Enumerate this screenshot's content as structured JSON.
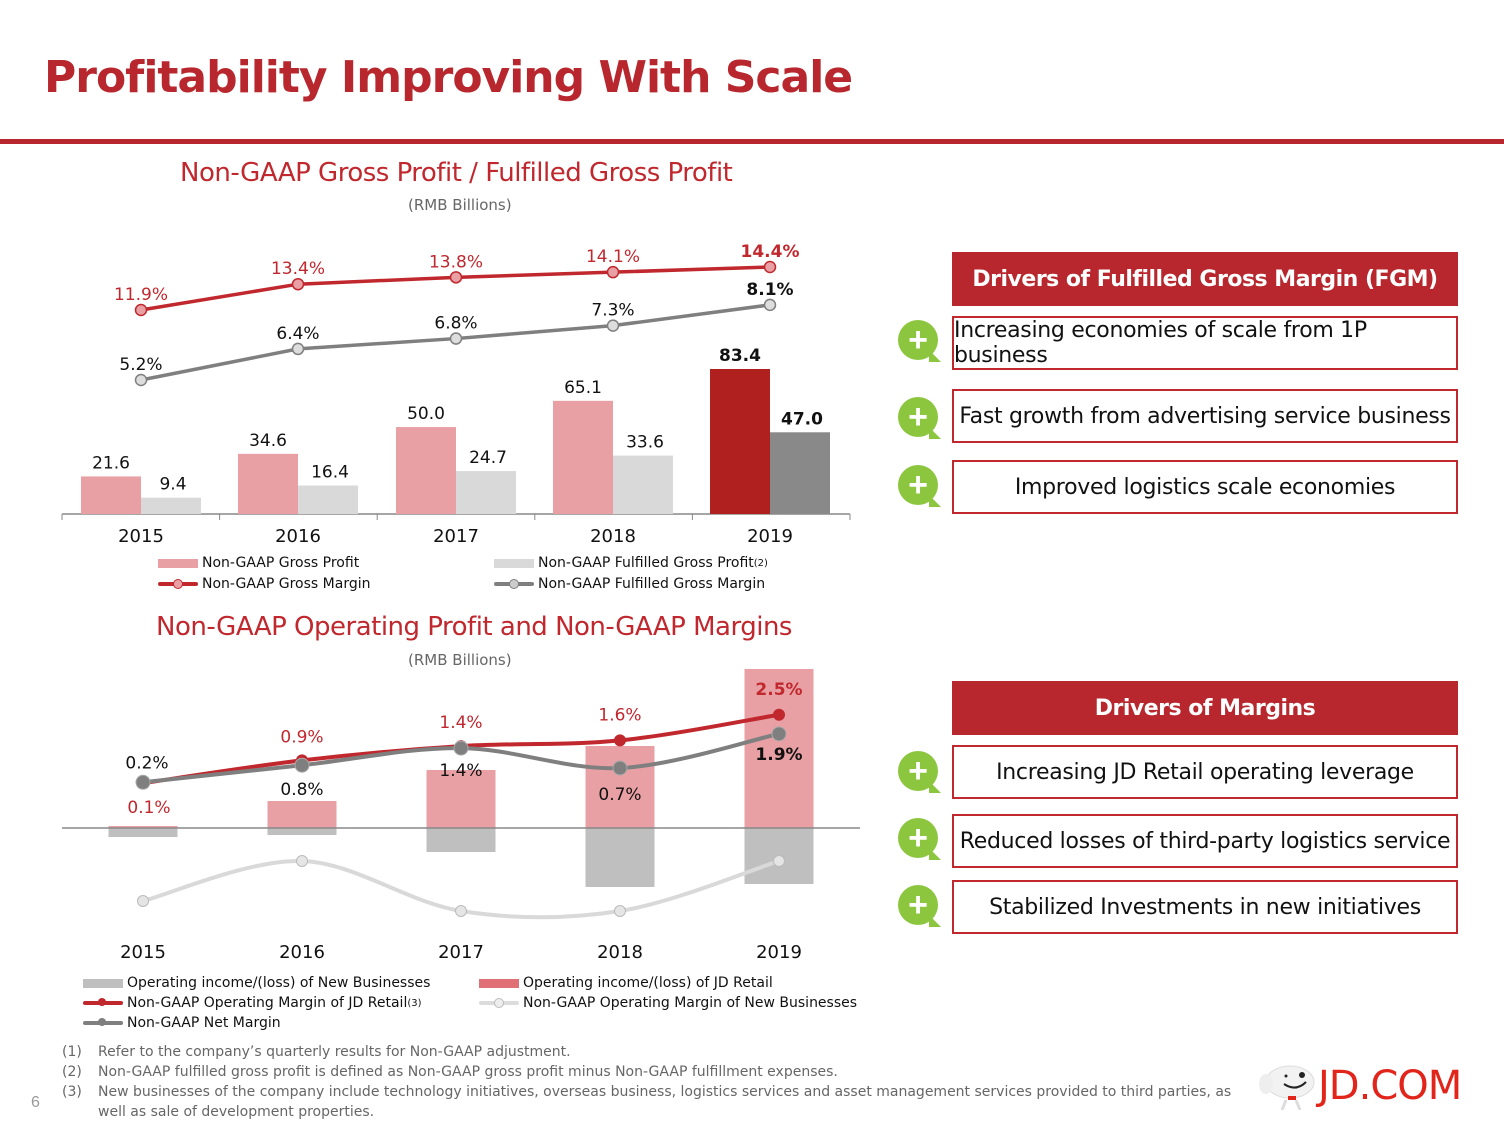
{
  "title": "Profitability Improving With Scale",
  "page_number": "6",
  "logo_text": "JD.COM",
  "colors": {
    "brand_red": "#b7272d",
    "pink": "#e8a0a4",
    "light_gray": "#d9d9d9",
    "dark_gray": "#898989",
    "dark_red": "#b0201e",
    "green": "#8cc63f"
  },
  "chart_data": [
    {
      "type": "bar",
      "title": "Non-GAAP Gross Profit / Fulfilled Gross Profit",
      "subtitle": "(RMB Billions)",
      "categories": [
        "2015",
        "2016",
        "2017",
        "2018",
        "2019"
      ],
      "series": [
        {
          "name": "Non-GAAP Gross Profit",
          "kind": "bar",
          "color": "#e8a0a4",
          "values": [
            21.6,
            34.6,
            50.0,
            65.1,
            83.4
          ],
          "labels": [
            "21.6",
            "34.6",
            "50.0",
            "65.1",
            "83.4"
          ]
        },
        {
          "name": "Non-GAAP Fulfilled Gross Profit",
          "footnote": "(2)",
          "kind": "bar",
          "color": "#d9d9d9",
          "values": [
            9.4,
            16.4,
            24.7,
            33.6,
            47.0
          ],
          "labels": [
            "9.4",
            "16.4",
            "24.7",
            "33.6",
            "47.0"
          ]
        },
        {
          "name": "Non-GAAP Gross Margin",
          "kind": "line",
          "color": "#c0282e",
          "values": [
            11.9,
            13.4,
            13.8,
            14.1,
            14.4
          ],
          "labels": [
            "11.9%",
            "13.4%",
            "13.8%",
            "14.1%",
            "14.4%"
          ]
        },
        {
          "name": "Non-GAAP Fulfilled Gross Margin",
          "kind": "line",
          "color": "#7f7f7f",
          "values": [
            5.2,
            6.4,
            6.8,
            7.3,
            8.1
          ],
          "labels": [
            "5.2%",
            "6.4%",
            "6.8%",
            "7.3%",
            "8.1%"
          ]
        }
      ],
      "highlight_last": {
        "bar_colors": [
          "#b0201e",
          "#898989"
        ]
      },
      "legend": "bottom",
      "grid": false
    },
    {
      "type": "bar",
      "title": "Non-GAAP Operating Profit and Non-GAAP Margins",
      "subtitle": "(RMB Billions)",
      "categories": [
        "2015",
        "2016",
        "2017",
        "2018",
        "2019"
      ],
      "series": [
        {
          "name": "Operating income/(loss) of New Businesses",
          "kind": "bar",
          "color": "#bfbfbf",
          "values": [
            -0.9,
            -0.7,
            -2.4,
            -5.9,
            -5.6
          ]
        },
        {
          "name": "Operating income/(loss) of JD Retail",
          "kind": "bar",
          "color": "#e8a0a4",
          "values": [
            0.2,
            2.7,
            5.8,
            8.2,
            15.9
          ]
        },
        {
          "name": "Non-GAAP Operating Margin of JD Retail",
          "footnote": "(3)",
          "kind": "line",
          "color": "#c0282e",
          "values": [
            0.1,
            0.9,
            1.4,
            1.6,
            2.5
          ],
          "labels": [
            "0.1%",
            "0.9%",
            "1.4%",
            "1.6%",
            "2.5%"
          ]
        },
        {
          "name": "Non-GAAP Operating Margin of New Businesses",
          "kind": "line",
          "color": "#d9d9d9",
          "values": [
            -15,
            -7,
            -17,
            -17,
            -7
          ]
        },
        {
          "name": "Non-GAAP Net Margin",
          "kind": "line",
          "color": "#7f7f7f",
          "values": [
            0.2,
            0.8,
            1.4,
            0.7,
            1.9
          ],
          "labels": [
            "0.2%",
            "0.8%",
            "1.4%",
            "0.7%",
            "1.9%"
          ]
        }
      ],
      "legend": "bottom",
      "grid": false
    }
  ],
  "drivers_fgm": {
    "header": "Drivers of Fulfilled Gross Margin (FGM)",
    "items": [
      "Increasing economies of scale from 1P business",
      "Fast growth from advertising service business",
      "Improved logistics scale economies"
    ]
  },
  "drivers_margins": {
    "header": "Drivers of Margins",
    "items": [
      "Increasing JD Retail operating leverage",
      "Reduced losses of third-party logistics service",
      "Stabilized Investments in new initiatives"
    ]
  },
  "footnotes": [
    {
      "num": "(1)",
      "text": "Refer to the company’s quarterly results for Non-GAAP adjustment."
    },
    {
      "num": "(2)",
      "text": "Non-GAAP fulfilled gross profit is defined as Non-GAAP gross profit minus Non-GAAP fulfillment expenses."
    },
    {
      "num": "(3)",
      "text": "New businesses of the company include technology initiatives, overseas business, logistics services and asset management services provided to third parties, as well as sale of development properties."
    }
  ]
}
